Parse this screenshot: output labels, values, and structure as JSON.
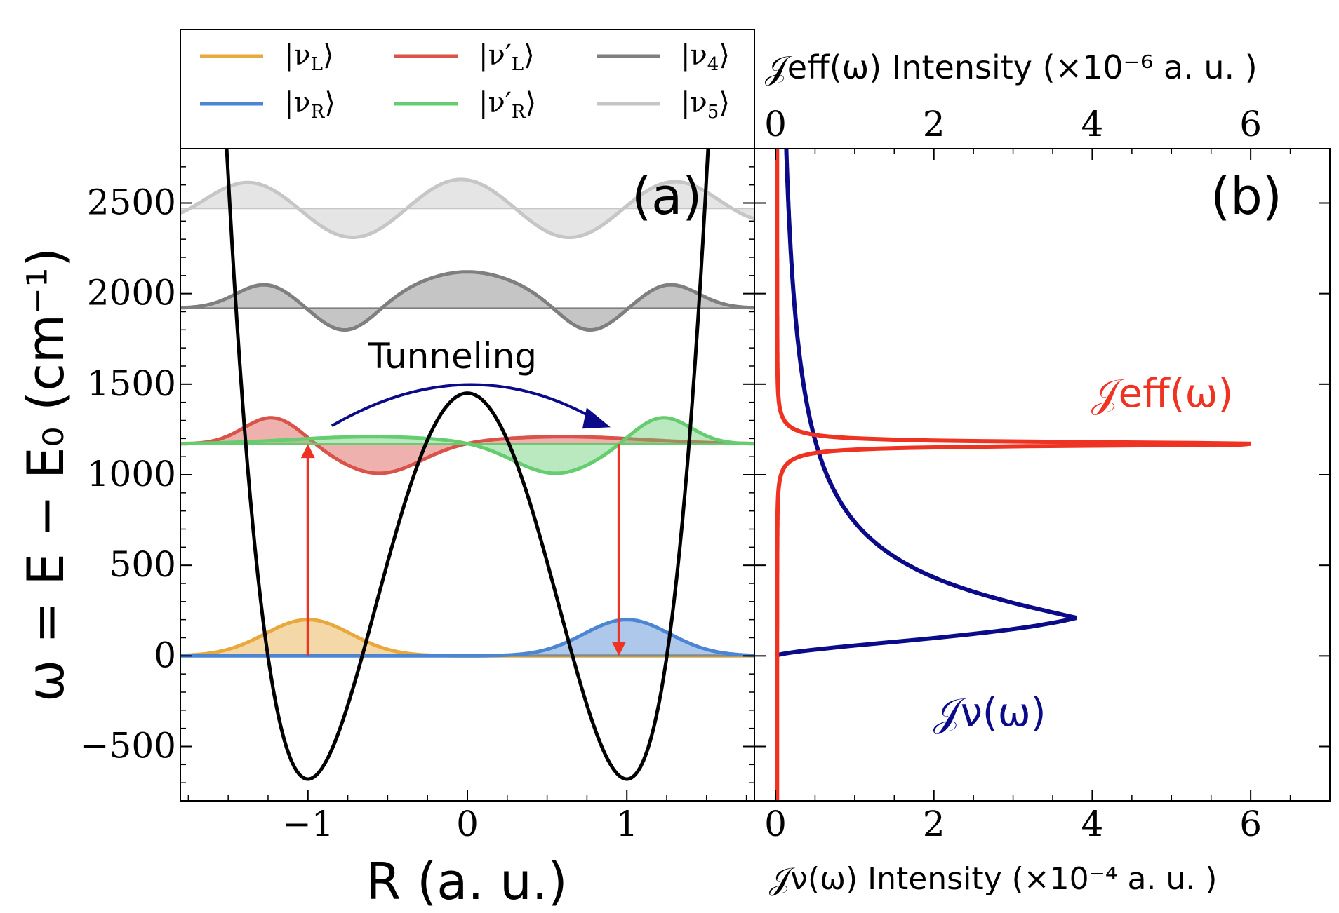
{
  "chart_data": [
    {
      "panel": "(a)",
      "type": "line",
      "xlabel": "R (a. u.)",
      "ylabel": "ω = E − E₀ (cm⁻¹)",
      "xlim": [
        -1.8,
        1.8
      ],
      "ylim": [
        -800,
        2800
      ],
      "x_ticks": [
        -1,
        0,
        1
      ],
      "x_tick_labels": [
        "−1",
        "0",
        "1"
      ],
      "y_ticks": [
        -500,
        0,
        500,
        1000,
        1500,
        2000,
        2500
      ],
      "y_tick_labels": [
        "−500",
        "0",
        "500",
        "1000",
        "1500",
        "2000",
        "2500"
      ],
      "potential": {
        "name": "double-well potential",
        "color": "#000000",
        "barrier_height": 1450,
        "minima": [
          {
            "x": -1,
            "y": -680
          },
          {
            "x": 1,
            "y": -680
          }
        ]
      },
      "series": [
        {
          "name": "|νL⟩",
          "color": "#E9A83C",
          "baseline": 0,
          "peak_x": -1,
          "amplitude": 200
        },
        {
          "name": "|νR⟩",
          "color": "#4C86D2",
          "baseline": 0,
          "peak_x": 1,
          "amplitude": 200
        },
        {
          "name": "|ν′L⟩",
          "color": "#D9534A",
          "baseline": 1170
        },
        {
          "name": "|ν′R⟩",
          "color": "#66CC70",
          "baseline": 1170
        },
        {
          "name": "|ν4⟩",
          "color": "#7F7F7F",
          "baseline": 1920
        },
        {
          "name": "|ν5⟩",
          "color": "#C6C6C6",
          "baseline": 2470
        }
      ],
      "annotations": {
        "tunneling_label": "Tunneling",
        "panel_label": "(a)",
        "up_arrow": {
          "x": -1,
          "from": 0,
          "to": 1170,
          "color": "#EE3322"
        },
        "down_arrow": {
          "x": 0.95,
          "from": 1170,
          "to": 0,
          "color": "#EE3322"
        },
        "tunneling_arrow": {
          "from_x": -0.85,
          "to_x": 0.88,
          "peak": 1500,
          "color": "#0B0B8A"
        }
      }
    },
    {
      "panel": "(b)",
      "type": "line",
      "panel_label": "(b)",
      "top_xlabel": "𝒥eff(ω) Intensity (×10⁻⁶ a. u. )",
      "bottom_xlabel": "𝒥ν(ω) Intensity (×10⁻⁴ a. u. )",
      "xlim": [
        0,
        7
      ],
      "x_ticks": [
        0,
        2,
        4,
        6
      ],
      "x_tick_labels": [
        "0",
        "2",
        "4",
        "6"
      ],
      "series": [
        {
          "name": "𝒥eff(ω)",
          "color": "#EE3322",
          "axis": "top",
          "peak_omega": 1170,
          "peak_value": 6.0
        },
        {
          "name": "𝒥ν(ω)",
          "color": "#0B0B8A",
          "axis": "bottom",
          "peak_omega": 210,
          "peak_value": 3.8
        }
      ]
    }
  ],
  "legend": {
    "placement": "top",
    "items": [
      {
        "label_main": "|ν",
        "label_sub": "L",
        "label_end": "⟩",
        "color": "#E9A83C"
      },
      {
        "label_main": "|ν′",
        "label_sub": "L",
        "label_end": "⟩",
        "color": "#D9534A"
      },
      {
        "label_main": "|ν",
        "label_sub": "4",
        "label_end": "⟩",
        "color": "#7F7F7F"
      },
      {
        "label_main": "|ν",
        "label_sub": "R",
        "label_end": "⟩",
        "color": "#4C86D2"
      },
      {
        "label_main": "|ν′",
        "label_sub": "R",
        "label_end": "⟩",
        "color": "#66CC70"
      },
      {
        "label_main": "|ν",
        "label_sub": "5",
        "label_end": "⟩",
        "color": "#C6C6C6"
      }
    ]
  }
}
